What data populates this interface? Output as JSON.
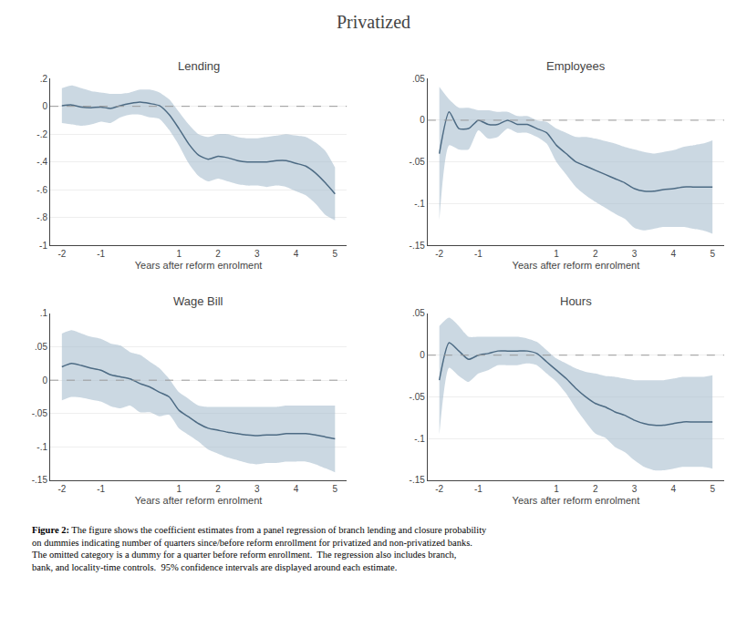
{
  "chart_data": {
    "type": "line",
    "title": "Privatized",
    "background_color": "#ffffff",
    "caption": [
      "Figure 2:",
      "The figure shows the coefficient estimates from a panel regression of branch lending and closure probability\non dummies indicating number of quarters since/before reform enrollment for privatized and non-privatized banks.\nThe omitted category is a dummy for a quarter before reform enrollment.  The regression also includes branch,\nbank, and locality-time controls.  95% confidence intervals are displayed around each estimate."
    ],
    "charts": [
      {
        "type": "line",
        "title": "Lending",
        "xlabel": "Years after reform enrolment",
        "xlim": [
          -2.3,
          5.3
        ],
        "xticks": [
          -2,
          -1,
          1,
          2,
          3,
          4,
          5
        ],
        "ylim": [
          -1,
          0.2
        ],
        "yticks": [
          {
            "value": 0.2,
            "label": ".2"
          },
          0,
          {
            "value": -0.2,
            "label": "-.2"
          },
          {
            "value": -0.4,
            "label": "-.4"
          },
          {
            "value": -0.6,
            "label": "-.6"
          },
          {
            "value": -0.8,
            "label": "-.8"
          },
          -1
        ],
        "grid": "y",
        "x": [
          -2.0,
          -1.75,
          -1.5,
          -1.25,
          -1.0,
          -0.75,
          -0.5,
          -0.25,
          0.0,
          0.25,
          0.5,
          0.75,
          1.0,
          1.25,
          1.5,
          1.75,
          2.0,
          2.25,
          2.5,
          2.75,
          3.0,
          3.25,
          3.5,
          3.75,
          4.0,
          4.25,
          4.5,
          4.75,
          5.0
        ],
        "series": [
          {
            "type": "band",
            "color": "#a8bece",
            "upper": [
              0.13,
              0.15,
              0.13,
              0.11,
              0.1,
              0.09,
              0.09,
              0.1,
              0.12,
              0.12,
              0.1,
              0.05,
              -0.04,
              -0.13,
              -0.2,
              -0.22,
              -0.2,
              -0.2,
              -0.22,
              -0.23,
              -0.23,
              -0.22,
              -0.21,
              -0.2,
              -0.21,
              -0.22,
              -0.26,
              -0.32,
              -0.44
            ],
            "lower": [
              -0.12,
              -0.13,
              -0.14,
              -0.13,
              -0.11,
              -0.12,
              -0.08,
              -0.06,
              -0.06,
              -0.08,
              -0.09,
              -0.17,
              -0.28,
              -0.41,
              -0.5,
              -0.54,
              -0.52,
              -0.54,
              -0.56,
              -0.57,
              -0.57,
              -0.58,
              -0.57,
              -0.58,
              -0.61,
              -0.64,
              -0.7,
              -0.78,
              -0.82
            ]
          },
          {
            "type": "line",
            "color": "#4d6b84",
            "values": [
              0.005,
              0.01,
              -0.005,
              -0.01,
              -0.005,
              -0.015,
              0.005,
              0.02,
              0.03,
              0.02,
              0.005,
              -0.06,
              -0.16,
              -0.27,
              -0.35,
              -0.38,
              -0.36,
              -0.37,
              -0.39,
              -0.4,
              -0.4,
              -0.4,
              -0.39,
              -0.39,
              -0.41,
              -0.43,
              -0.48,
              -0.55,
              -0.63
            ]
          },
          {
            "type": "hline",
            "color": "#999999",
            "line_style": "dashed",
            "values": [
              0
            ]
          }
        ]
      },
      {
        "type": "line",
        "title": "Employees",
        "xlabel": "Years after reform enrolment",
        "xlim": [
          -2.3,
          5.3
        ],
        "xticks": [
          -2,
          -1,
          1,
          2,
          3,
          4,
          5
        ],
        "ylim": [
          -0.15,
          0.05
        ],
        "yticks": [
          {
            "value": 0.05,
            "label": ".05"
          },
          0,
          {
            "value": -0.05,
            "label": "-.05"
          },
          {
            "value": -0.1,
            "label": "-.1"
          },
          {
            "value": -0.15,
            "label": "-.15"
          }
        ],
        "grid": "y",
        "x": [
          -2.0,
          -1.75,
          -1.5,
          -1.25,
          -1.0,
          -0.75,
          -0.5,
          -0.25,
          0.0,
          0.25,
          0.5,
          0.75,
          1.0,
          1.25,
          1.5,
          1.75,
          2.0,
          2.25,
          2.5,
          2.75,
          3.0,
          3.25,
          3.5,
          3.75,
          4.0,
          4.25,
          4.5,
          4.75,
          5.0
        ],
        "series": [
          {
            "type": "band",
            "color": "#a8bece",
            "upper": [
              0.04,
              0.025,
              0.015,
              0.015,
              0.012,
              0.012,
              0.01,
              0.01,
              0.005,
              0.005,
              0.0,
              -0.002,
              -0.01,
              -0.015,
              -0.02,
              -0.02,
              -0.022,
              -0.025,
              -0.028,
              -0.032,
              -0.035,
              -0.038,
              -0.04,
              -0.038,
              -0.036,
              -0.032,
              -0.03,
              -0.028,
              -0.024
            ],
            "lower": [
              -0.12,
              -0.03,
              -0.035,
              -0.035,
              -0.012,
              -0.022,
              -0.02,
              -0.01,
              -0.015,
              -0.015,
              -0.02,
              -0.028,
              -0.05,
              -0.065,
              -0.08,
              -0.09,
              -0.098,
              -0.105,
              -0.112,
              -0.118,
              -0.129,
              -0.132,
              -0.13,
              -0.128,
              -0.128,
              -0.128,
              -0.13,
              -0.132,
              -0.136
            ]
          },
          {
            "type": "line",
            "color": "#4d6b84",
            "values": [
              -0.04,
              0.01,
              -0.01,
              -0.01,
              0.0,
              -0.005,
              -0.005,
              0.0,
              -0.005,
              -0.005,
              -0.01,
              -0.015,
              -0.03,
              -0.04,
              -0.05,
              -0.055,
              -0.06,
              -0.065,
              -0.07,
              -0.075,
              -0.082,
              -0.085,
              -0.085,
              -0.083,
              -0.082,
              -0.08,
              -0.08,
              -0.08,
              -0.08
            ]
          },
          {
            "type": "hline",
            "color": "#999999",
            "line_style": "dashed",
            "values": [
              0
            ]
          }
        ]
      },
      {
        "type": "line",
        "title": "Wage Bill",
        "xlabel": "Years after reform enrolment",
        "xlim": [
          -2.3,
          5.3
        ],
        "xticks": [
          -2,
          -1,
          1,
          2,
          3,
          4,
          5
        ],
        "ylim": [
          -0.15,
          0.1
        ],
        "yticks": [
          {
            "value": 0.1,
            "label": ".1"
          },
          {
            "value": 0.05,
            "label": ".05"
          },
          0,
          {
            "value": -0.05,
            "label": "-.05"
          },
          {
            "value": -0.1,
            "label": "-.1"
          },
          {
            "value": -0.15,
            "label": "-.15"
          }
        ],
        "grid": "y",
        "x": [
          -2.0,
          -1.75,
          -1.5,
          -1.25,
          -1.0,
          -0.75,
          -0.5,
          -0.25,
          0.0,
          0.25,
          0.5,
          0.75,
          1.0,
          1.25,
          1.5,
          1.75,
          2.0,
          2.25,
          2.5,
          2.75,
          3.0,
          3.25,
          3.5,
          3.75,
          4.0,
          4.25,
          4.5,
          4.75,
          5.0
        ],
        "series": [
          {
            "type": "band",
            "color": "#a8bece",
            "upper": [
              0.07,
              0.075,
              0.07,
              0.065,
              0.062,
              0.055,
              0.052,
              0.042,
              0.038,
              0.028,
              0.018,
              0.002,
              -0.018,
              -0.028,
              -0.038,
              -0.04,
              -0.04,
              -0.04,
              -0.04,
              -0.04,
              -0.04,
              -0.04,
              -0.04,
              -0.038,
              -0.038,
              -0.038,
              -0.038,
              -0.038,
              -0.038
            ],
            "lower": [
              -0.03,
              -0.025,
              -0.026,
              -0.029,
              -0.032,
              -0.039,
              -0.042,
              -0.038,
              -0.048,
              -0.048,
              -0.054,
              -0.052,
              -0.072,
              -0.082,
              -0.092,
              -0.104,
              -0.11,
              -0.116,
              -0.12,
              -0.124,
              -0.126,
              -0.124,
              -0.124,
              -0.122,
              -0.122,
              -0.122,
              -0.126,
              -0.132,
              -0.138
            ]
          },
          {
            "type": "line",
            "color": "#4d6b84",
            "values": [
              0.02,
              0.025,
              0.022,
              0.018,
              0.015,
              0.008,
              0.005,
              0.002,
              -0.005,
              -0.01,
              -0.018,
              -0.025,
              -0.045,
              -0.055,
              -0.065,
              -0.072,
              -0.075,
              -0.078,
              -0.08,
              -0.082,
              -0.083,
              -0.082,
              -0.082,
              -0.08,
              -0.08,
              -0.08,
              -0.082,
              -0.085,
              -0.088
            ]
          },
          {
            "type": "hline",
            "color": "#999999",
            "line_style": "dashed",
            "values": [
              0
            ]
          }
        ]
      },
      {
        "type": "line",
        "title": "Hours",
        "xlabel": "Years after reform enrolment",
        "xlim": [
          -2.3,
          5.3
        ],
        "xticks": [
          -2,
          -1,
          1,
          2,
          3,
          4,
          5
        ],
        "ylim": [
          -0.15,
          0.05
        ],
        "yticks": [
          {
            "value": 0.05,
            "label": ".05"
          },
          0,
          {
            "value": -0.05,
            "label": "-.05"
          },
          {
            "value": -0.1,
            "label": "-.1"
          },
          {
            "value": -0.15,
            "label": "-.15"
          }
        ],
        "grid": "y",
        "x": [
          -2.0,
          -1.75,
          -1.5,
          -1.25,
          -1.0,
          -0.75,
          -0.5,
          -0.25,
          0.0,
          0.25,
          0.5,
          0.75,
          1.0,
          1.25,
          1.5,
          1.75,
          2.0,
          2.25,
          2.5,
          2.75,
          3.0,
          3.25,
          3.5,
          3.75,
          4.0,
          4.25,
          4.5,
          4.75,
          5.0
        ],
        "series": [
          {
            "type": "band",
            "color": "#a8bece",
            "upper": [
              0.035,
              0.045,
              0.035,
              0.022,
              0.022,
              0.022,
              0.022,
              0.022,
              0.022,
              0.02,
              0.016,
              0.006,
              -0.004,
              -0.01,
              -0.016,
              -0.02,
              -0.022,
              -0.025,
              -0.026,
              -0.028,
              -0.03,
              -0.03,
              -0.03,
              -0.03,
              -0.028,
              -0.026,
              -0.026,
              -0.026,
              -0.024
            ],
            "lower": [
              -0.095,
              -0.015,
              -0.025,
              -0.032,
              -0.022,
              -0.018,
              -0.012,
              -0.012,
              -0.012,
              -0.01,
              -0.012,
              -0.022,
              -0.032,
              -0.046,
              -0.064,
              -0.08,
              -0.094,
              -0.099,
              -0.11,
              -0.116,
              -0.126,
              -0.134,
              -0.138,
              -0.138,
              -0.136,
              -0.134,
              -0.134,
              -0.134,
              -0.136
            ]
          },
          {
            "type": "line",
            "color": "#4d6b84",
            "values": [
              -0.03,
              0.015,
              0.005,
              -0.005,
              0.0,
              0.002,
              0.005,
              0.005,
              0.005,
              0.005,
              0.002,
              -0.008,
              -0.018,
              -0.028,
              -0.04,
              -0.05,
              -0.058,
              -0.062,
              -0.068,
              -0.072,
              -0.078,
              -0.082,
              -0.084,
              -0.084,
              -0.082,
              -0.08,
              -0.08,
              -0.08,
              -0.08
            ]
          },
          {
            "type": "hline",
            "color": "#999999",
            "line_style": "dashed",
            "values": [
              0
            ]
          }
        ]
      }
    ]
  }
}
